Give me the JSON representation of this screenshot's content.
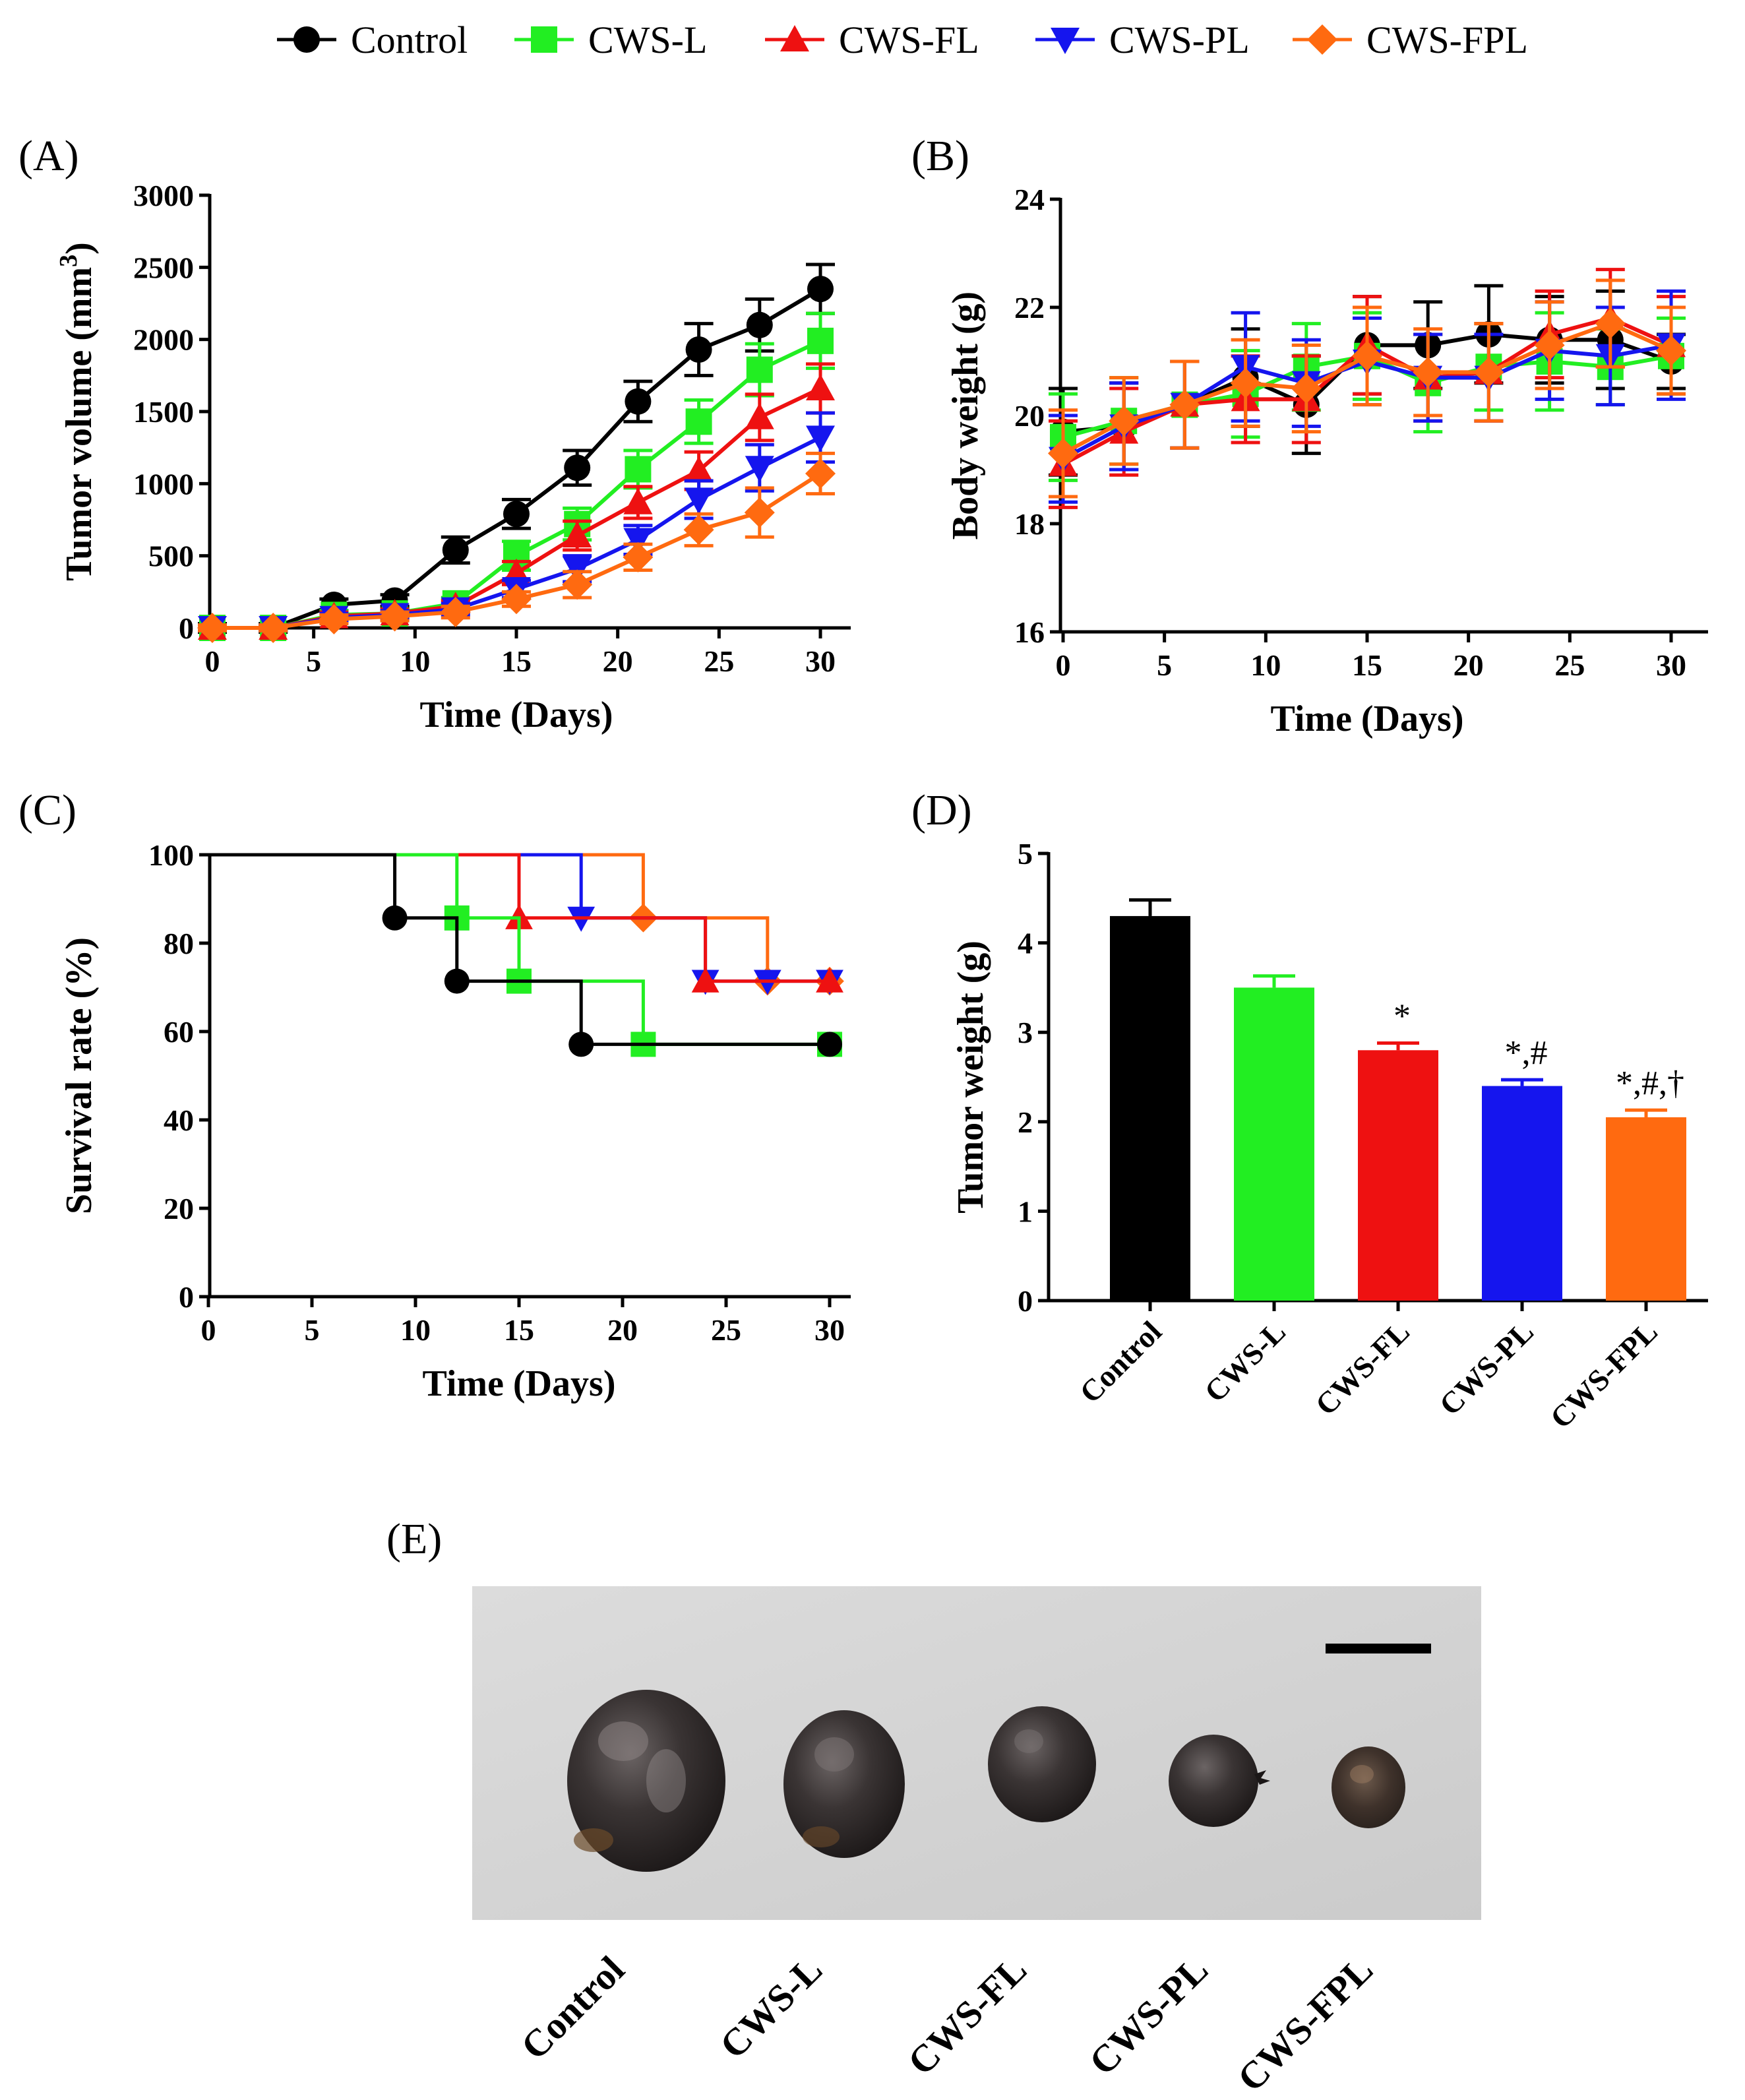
{
  "legend": [
    {
      "name": "Control",
      "color": "#000000",
      "marker": "circle"
    },
    {
      "name": "CWS-L",
      "color": "#22ee22",
      "marker": "square"
    },
    {
      "name": "CWS-FL",
      "color": "#ee1111",
      "marker": "triangle-up"
    },
    {
      "name": "CWS-PL",
      "color": "#1515ee",
      "marker": "triangle-down"
    },
    {
      "name": "CWS-FPL",
      "color": "#ff6a10",
      "marker": "diamond"
    }
  ],
  "chart_data": [
    {
      "id": "A",
      "panel_label": "(A)",
      "type": "line",
      "xlabel": "Time (Days)",
      "ylabel": "Tumor volume (mm³)",
      "xlim": [
        0,
        30
      ],
      "ylim": [
        0,
        3000
      ],
      "xticks": [
        0,
        5,
        10,
        15,
        20,
        25,
        30
      ],
      "yticks": [
        0,
        500,
        1000,
        1500,
        2000,
        2500,
        3000
      ],
      "x": [
        0,
        3,
        6,
        9,
        12,
        15,
        18,
        21,
        24,
        27,
        30
      ],
      "series": [
        {
          "name": "Control",
          "values": [
            0,
            0,
            160,
            190,
            540,
            790,
            1110,
            1570,
            1930,
            2100,
            2350
          ],
          "err": [
            30,
            30,
            40,
            40,
            90,
            100,
            120,
            140,
            180,
            180,
            170
          ]
        },
        {
          "name": "CWS-L",
          "values": [
            0,
            0,
            90,
            100,
            170,
            500,
            720,
            1100,
            1430,
            1790,
            1990
          ],
          "err": [
            20,
            20,
            30,
            30,
            40,
            100,
            110,
            130,
            150,
            180,
            190
          ]
        },
        {
          "name": "CWS-FL",
          "values": [
            0,
            0,
            80,
            100,
            150,
            380,
            640,
            870,
            1090,
            1460,
            1660
          ],
          "err": [
            20,
            20,
            30,
            30,
            40,
            80,
            100,
            110,
            130,
            160,
            170
          ]
        },
        {
          "name": "CWS-PL",
          "values": [
            0,
            0,
            70,
            90,
            130,
            270,
            410,
            610,
            890,
            1110,
            1320
          ],
          "err": [
            20,
            20,
            30,
            30,
            40,
            60,
            90,
            100,
            130,
            160,
            170
          ]
        },
        {
          "name": "CWS-FPL",
          "values": [
            0,
            0,
            60,
            80,
            110,
            200,
            300,
            490,
            680,
            800,
            1070
          ],
          "err": [
            20,
            20,
            30,
            30,
            40,
            50,
            90,
            90,
            110,
            170,
            140
          ]
        }
      ]
    },
    {
      "id": "B",
      "panel_label": "(B)",
      "type": "line",
      "xlabel": "Time (Days)",
      "ylabel": "Body weight (g)",
      "xlim": [
        0,
        30
      ],
      "ylim": [
        16,
        24
      ],
      "xticks": [
        0,
        5,
        10,
        15,
        20,
        25,
        30
      ],
      "yticks": [
        16,
        18,
        20,
        22,
        24
      ],
      "x": [
        0,
        3,
        6,
        9,
        12,
        15,
        18,
        21,
        24,
        27,
        30
      ],
      "series": [
        {
          "name": "Control",
          "values": [
            19.7,
            19.8,
            20.2,
            20.7,
            20.2,
            21.3,
            21.3,
            21.5,
            21.4,
            21.4,
            21.0
          ],
          "err": [
            0.8,
            0.8,
            0.8,
            0.9,
            0.9,
            0.9,
            0.8,
            0.9,
            0.8,
            0.9,
            0.5
          ]
        },
        {
          "name": "CWS-L",
          "values": [
            19.6,
            19.9,
            20.2,
            20.4,
            20.9,
            21.1,
            20.6,
            20.9,
            21.0,
            20.9,
            21.1
          ],
          "err": [
            0.8,
            0.8,
            0.8,
            0.8,
            0.8,
            0.8,
            0.9,
            0.8,
            0.9,
            0.7,
            0.7
          ]
        },
        {
          "name": "CWS-FL",
          "values": [
            19.1,
            19.7,
            20.2,
            20.3,
            20.3,
            21.3,
            20.7,
            20.8,
            21.5,
            21.8,
            21.3
          ],
          "err": [
            0.8,
            0.8,
            0.8,
            0.8,
            0.8,
            0.9,
            0.8,
            0.9,
            0.8,
            0.9,
            0.9
          ]
        },
        {
          "name": "CWS-PL",
          "values": [
            19.2,
            19.8,
            20.2,
            20.9,
            20.6,
            21.0,
            20.7,
            20.7,
            21.2,
            21.1,
            21.3
          ],
          "err": [
            0.8,
            0.8,
            0.8,
            1.0,
            0.8,
            0.8,
            0.8,
            0.8,
            0.9,
            0.9,
            1.0
          ]
        },
        {
          "name": "CWS-FPL",
          "values": [
            19.3,
            19.9,
            20.2,
            20.6,
            20.5,
            21.1,
            20.8,
            20.8,
            21.3,
            21.7,
            21.2
          ],
          "err": [
            0.8,
            0.8,
            0.8,
            0.8,
            0.8,
            0.9,
            0.8,
            0.9,
            0.8,
            0.8,
            0.8
          ]
        }
      ]
    },
    {
      "id": "C",
      "panel_label": "(C)",
      "type": "line",
      "step": true,
      "xlabel": "Time (Days)",
      "ylabel": "Survival rate (%)",
      "xlim": [
        0,
        30
      ],
      "ylim": [
        0,
        100
      ],
      "xticks": [
        0,
        5,
        10,
        15,
        20,
        25,
        30
      ],
      "yticks": [
        0,
        20,
        40,
        60,
        80,
        100
      ],
      "series": [
        {
          "name": "Control",
          "x": [
            0,
            9,
            12,
            18,
            30
          ],
          "values": [
            100,
            85.7,
            71.4,
            57.1,
            57.1
          ]
        },
        {
          "name": "CWS-L",
          "x": [
            0,
            12,
            15,
            21,
            30
          ],
          "values": [
            100,
            85.7,
            71.4,
            57.1,
            57.1
          ]
        },
        {
          "name": "CWS-FL",
          "x": [
            0,
            15,
            24,
            30
          ],
          "values": [
            100,
            85.7,
            71.4,
            71.4
          ]
        },
        {
          "name": "CWS-PL",
          "x": [
            0,
            18,
            24,
            27,
            30
          ],
          "values": [
            100,
            85.7,
            71.4,
            71.4,
            71.4
          ]
        },
        {
          "name": "CWS-FPL",
          "x": [
            0,
            21,
            27,
            30
          ],
          "values": [
            100,
            85.7,
            71.4,
            71.4
          ]
        }
      ]
    },
    {
      "id": "D",
      "panel_label": "(D)",
      "type": "bar",
      "ylabel": "Tumor weight (g)",
      "ylim": [
        0,
        5
      ],
      "yticks": [
        0,
        1,
        2,
        3,
        4,
        5
      ],
      "categories": [
        "Control",
        "CWS-L",
        "CWS-FL",
        "CWS-PL",
        "CWS-FPL"
      ],
      "values": [
        4.3,
        3.5,
        2.8,
        2.4,
        2.05
      ],
      "err": [
        0.18,
        0.13,
        0.08,
        0.07,
        0.08
      ],
      "colors": [
        "#000000",
        "#22ee22",
        "#ee1111",
        "#1515ee",
        "#ff6a10"
      ],
      "annotations": [
        "",
        "",
        "*",
        "*,#",
        "*,#,†"
      ]
    }
  ],
  "panel_e": {
    "label": "(E)",
    "samples": [
      "Control",
      "CWS-L",
      "CWS-FL",
      "CWS-PL",
      "CWS-FPL"
    ]
  }
}
